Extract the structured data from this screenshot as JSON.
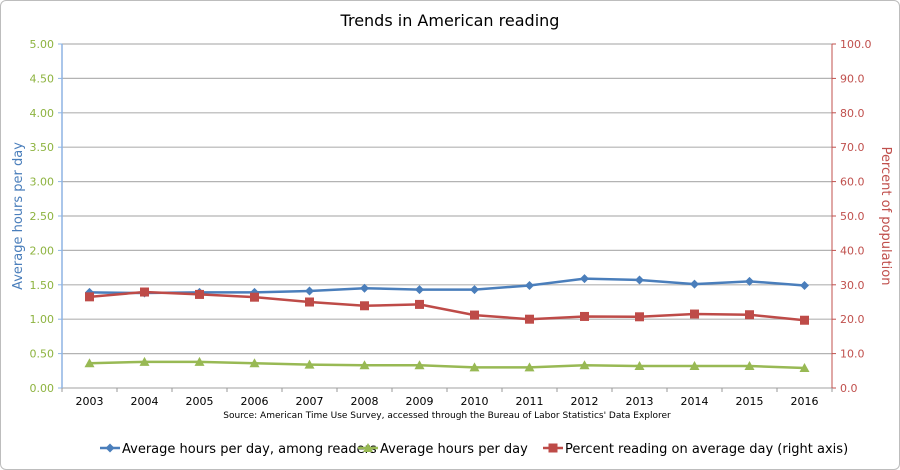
{
  "chart_data": {
    "type": "line",
    "title": "Trends in American reading",
    "source_note": "Source: American Time Use Survey, accessed through the Bureau of Labor Statistics' Data Explorer",
    "categories": [
      "2003",
      "2004",
      "2005",
      "2006",
      "2007",
      "2008",
      "2009",
      "2010",
      "2011",
      "2012",
      "2013",
      "2014",
      "2015",
      "2016"
    ],
    "y_left": {
      "label": "Average hours per day",
      "range": [
        0,
        5
      ],
      "ticks": [
        "0.00",
        "0.50",
        "1.00",
        "1.50",
        "2.00",
        "2.50",
        "3.00",
        "3.50",
        "4.00",
        "4.50",
        "5.00"
      ]
    },
    "y_right": {
      "label": "Percent of population",
      "range": [
        0,
        100
      ],
      "ticks": [
        "0.0",
        "10.0",
        "20.0",
        "30.0",
        "40.0",
        "50.0",
        "60.0",
        "70.0",
        "80.0",
        "90.0",
        "100.0"
      ]
    },
    "grid": true,
    "legend_position": "bottom",
    "series": [
      {
        "name": "Average hours per day, among readers",
        "axis": "left",
        "marker": "diamond",
        "color": "#4a7ebb",
        "values": [
          1.39,
          1.38,
          1.39,
          1.39,
          1.41,
          1.45,
          1.43,
          1.43,
          1.49,
          1.59,
          1.57,
          1.51,
          1.55,
          1.49
        ]
      },
      {
        "name": "Average hours per day",
        "axis": "left",
        "marker": "triangle",
        "color": "#98b954",
        "values": [
          0.36,
          0.38,
          0.38,
          0.36,
          0.34,
          0.33,
          0.33,
          0.3,
          0.3,
          0.33,
          0.32,
          0.32,
          0.32,
          0.29
        ]
      },
      {
        "name": "Percent reading on average day (right axis)",
        "axis": "right",
        "marker": "square",
        "color": "#be4b48",
        "values": [
          26.5,
          27.9,
          27.2,
          26.4,
          25.0,
          23.9,
          24.3,
          21.2,
          20.0,
          20.8,
          20.7,
          21.5,
          21.3,
          19.7
        ]
      }
    ],
    "colors": {
      "left_tick": "#8db33f",
      "left_title": "#4a7ebb",
      "right": "#c0504d",
      "grid": "#b3b3b3"
    }
  }
}
